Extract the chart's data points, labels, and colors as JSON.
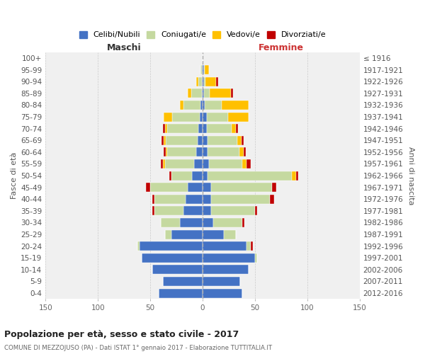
{
  "age_groups": [
    "0-4",
    "5-9",
    "10-14",
    "15-19",
    "20-24",
    "25-29",
    "30-34",
    "35-39",
    "40-44",
    "45-49",
    "50-54",
    "55-59",
    "60-64",
    "65-69",
    "70-74",
    "75-79",
    "80-84",
    "85-89",
    "90-94",
    "95-99",
    "100+"
  ],
  "birth_years": [
    "2012-2016",
    "2007-2011",
    "2002-2006",
    "1997-2001",
    "1992-1996",
    "1987-1991",
    "1982-1986",
    "1977-1981",
    "1972-1976",
    "1967-1971",
    "1962-1966",
    "1957-1961",
    "1952-1956",
    "1947-1951",
    "1942-1946",
    "1937-1941",
    "1932-1936",
    "1927-1931",
    "1922-1926",
    "1917-1921",
    "≤ 1916"
  ],
  "maschi_celibi": [
    42,
    38,
    48,
    58,
    60,
    30,
    22,
    18,
    16,
    14,
    10,
    8,
    6,
    5,
    4,
    3,
    2,
    1,
    1,
    1,
    0
  ],
  "maschi_coniugati": [
    0,
    0,
    0,
    0,
    2,
    6,
    18,
    28,
    30,
    36,
    20,
    28,
    28,
    30,
    30,
    26,
    16,
    10,
    3,
    1,
    0
  ],
  "maschi_vedovi": [
    0,
    0,
    0,
    0,
    0,
    0,
    0,
    0,
    0,
    0,
    0,
    2,
    1,
    2,
    2,
    8,
    4,
    3,
    2,
    0,
    0
  ],
  "maschi_divorziati": [
    0,
    0,
    0,
    0,
    0,
    0,
    0,
    2,
    2,
    4,
    2,
    2,
    2,
    2,
    2,
    0,
    0,
    0,
    0,
    0,
    0
  ],
  "femmine_nubili": [
    38,
    36,
    44,
    50,
    42,
    20,
    10,
    8,
    8,
    8,
    5,
    6,
    5,
    5,
    4,
    4,
    2,
    1,
    1,
    1,
    0
  ],
  "femmine_coniugate": [
    0,
    0,
    0,
    2,
    4,
    12,
    28,
    42,
    56,
    58,
    80,
    32,
    30,
    28,
    24,
    20,
    16,
    6,
    2,
    1,
    0
  ],
  "femmine_vedove": [
    0,
    0,
    0,
    0,
    0,
    0,
    0,
    0,
    0,
    0,
    4,
    4,
    4,
    4,
    4,
    20,
    26,
    20,
    10,
    4,
    0
  ],
  "femmine_divorziate": [
    0,
    0,
    0,
    0,
    2,
    0,
    2,
    2,
    4,
    4,
    2,
    4,
    2,
    2,
    2,
    0,
    0,
    2,
    2,
    0,
    0
  ],
  "color_celibi": "#4472c4",
  "color_coniugati": "#c5d9a0",
  "color_vedovi": "#ffc000",
  "color_divorziati": "#c00000",
  "title": "Popolazione per età, sesso e stato civile - 2017",
  "subtitle": "COMUNE DI MEZZOJUSO (PA) - Dati ISTAT 1° gennaio 2017 - Elaborazione TUTTITALIA.IT",
  "legend_labels": [
    "Celibi/Nubili",
    "Coniugati/e",
    "Vedovi/e",
    "Divorziati/e"
  ],
  "xlim": 150,
  "bg_color": "#f0f0f0"
}
